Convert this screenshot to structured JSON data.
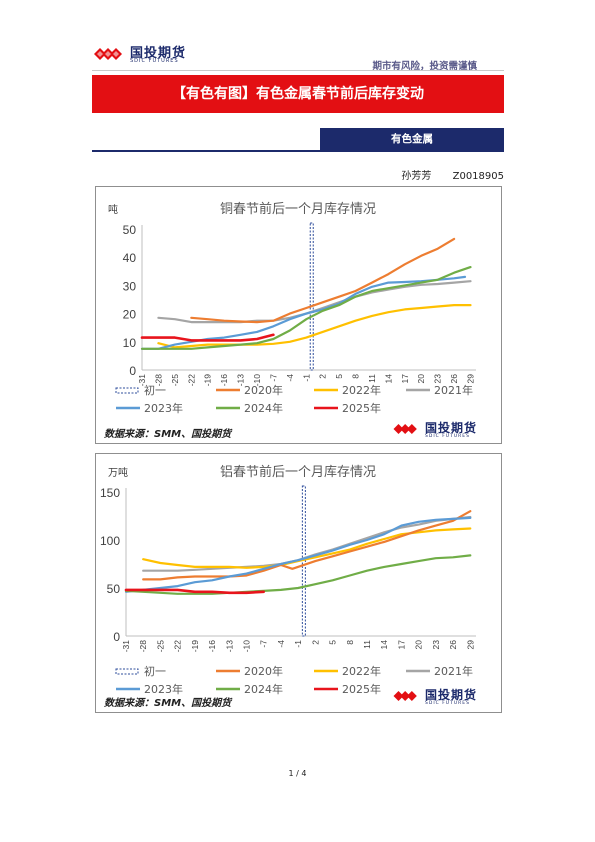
{
  "header": {
    "logo_text": "国投期货",
    "logo_en": "SDIC FUTURES",
    "slogan": "期市有风险，投资需谨慎",
    "title": "【有色有图】有色金属春节前后库存变动",
    "section": "有色金属",
    "author": "孙芳芳",
    "author_id": "Z0018905"
  },
  "footer": {
    "page": "1 / 4"
  },
  "colors": {
    "初一": "#2e4c9b",
    "2020年": "#ed7d31",
    "2022年": "#ffc000",
    "2021年": "#a5a5a5",
    "2023年": "#5b9bd5",
    "2024年": "#70ad47",
    "2025年": "#e8141c",
    "brand": "#e30f13",
    "navy": "#1c2a6b"
  },
  "chart_data": [
    {
      "type": "line",
      "title": "铜春节前后一个月库存情况",
      "ylabel": "吨",
      "ylim": [
        0,
        50
      ],
      "yticks": [
        0,
        10,
        20,
        30,
        40,
        50
      ],
      "xrange": [
        -31,
        30
      ],
      "xticks": [
        "-31",
        "-28",
        "-25",
        "-22",
        "-19",
        "-16",
        "-13",
        "-10",
        "-7",
        "-4",
        "-1",
        "2",
        "5",
        "8",
        "11",
        "14",
        "17",
        "20",
        "23",
        "26",
        "29"
      ],
      "marker_label": "初一",
      "marker_x": 0,
      "source": "数据来源：SMM、国投期货",
      "series": [
        {
          "name": "2020年",
          "points": [
            [
              -22,
              18.5
            ],
            [
              -19,
              18
            ],
            [
              -16,
              17.5
            ],
            [
              -13,
              17.2
            ],
            [
              -10,
              17
            ],
            [
              -7,
              17.5
            ],
            [
              -4,
              20
            ],
            [
              -1,
              22
            ],
            [
              2,
              24
            ],
            [
              5,
              26
            ],
            [
              8,
              28
            ],
            [
              11,
              31
            ],
            [
              14,
              34
            ],
            [
              17,
              37.5
            ],
            [
              20,
              40.5
            ],
            [
              23,
              43
            ],
            [
              26,
              46.5
            ]
          ]
        },
        {
          "name": "2022年",
          "points": [
            [
              -28,
              9.5
            ],
            [
              -25,
              8
            ],
            [
              -22,
              8.5
            ],
            [
              -19,
              9
            ],
            [
              -16,
              9
            ],
            [
              -13,
              9
            ],
            [
              -10,
              9
            ],
            [
              -7,
              9.3
            ],
            [
              -4,
              10
            ],
            [
              -1,
              11.5
            ],
            [
              2,
              13.5
            ],
            [
              5,
              15.5
            ],
            [
              8,
              17.5
            ],
            [
              11,
              19.2
            ],
            [
              14,
              20.5
            ],
            [
              17,
              21.5
            ],
            [
              20,
              22
            ],
            [
              23,
              22.5
            ],
            [
              26,
              23
            ],
            [
              29,
              23
            ]
          ]
        },
        {
          "name": "2021年",
          "points": [
            [
              -28,
              18.5
            ],
            [
              -25,
              18
            ],
            [
              -22,
              17
            ],
            [
              -19,
              17
            ],
            [
              -16,
              17
            ],
            [
              -13,
              17
            ],
            [
              -10,
              17.5
            ],
            [
              -7,
              17.5
            ],
            [
              -4,
              18.5
            ],
            [
              -1,
              20
            ],
            [
              2,
              22
            ],
            [
              5,
              24
            ],
            [
              8,
              26
            ],
            [
              11,
              27.5
            ],
            [
              14,
              28.5
            ],
            [
              17,
              29.5
            ],
            [
              20,
              30.2
            ],
            [
              23,
              30.5
            ],
            [
              26,
              31
            ],
            [
              29,
              31.5
            ]
          ]
        },
        {
          "name": "2023年",
          "points": [
            [
              -31,
              7.5
            ],
            [
              -28,
              7.5
            ],
            [
              -25,
              9
            ],
            [
              -22,
              10
            ],
            [
              -19,
              11
            ],
            [
              -16,
              11.5
            ],
            [
              -13,
              12.5
            ],
            [
              -10,
              13.5
            ],
            [
              -7,
              15.5
            ],
            [
              -4,
              18
            ],
            [
              -1,
              20
            ],
            [
              2,
              21.5
            ],
            [
              5,
              23.5
            ],
            [
              8,
              27
            ],
            [
              11,
              29.5
            ],
            [
              14,
              31
            ],
            [
              17,
              31.2
            ],
            [
              20,
              31.5
            ],
            [
              23,
              32
            ],
            [
              26,
              32.5
            ],
            [
              28,
              33
            ]
          ]
        },
        {
          "name": "2024年",
          "points": [
            [
              -31,
              7.5
            ],
            [
              -28,
              7.5
            ],
            [
              -25,
              7.5
            ],
            [
              -22,
              7.5
            ],
            [
              -19,
              8
            ],
            [
              -16,
              8.5
            ],
            [
              -13,
              9
            ],
            [
              -10,
              9.5
            ],
            [
              -7,
              11
            ],
            [
              -4,
              14
            ],
            [
              -1,
              18
            ],
            [
              2,
              21
            ],
            [
              5,
              23
            ],
            [
              8,
              26
            ],
            [
              11,
              28
            ],
            [
              14,
              29
            ],
            [
              17,
              30
            ],
            [
              20,
              31
            ],
            [
              23,
              32
            ],
            [
              26,
              34.5
            ],
            [
              29,
              36.5
            ]
          ]
        },
        {
          "name": "2025年",
          "points": [
            [
              -31,
              11.5
            ],
            [
              -28,
              11.5
            ],
            [
              -25,
              11.5
            ],
            [
              -22,
              10.5
            ],
            [
              -19,
              10.5
            ],
            [
              -16,
              10.5
            ],
            [
              -13,
              10.5
            ],
            [
              -10,
              11
            ],
            [
              -7,
              12.5
            ]
          ]
        }
      ]
    },
    {
      "type": "line",
      "title": "铝春节前后一个月库存情况",
      "ylabel": "万吨",
      "ylim": [
        0,
        150
      ],
      "yticks": [
        0,
        50,
        100,
        150
      ],
      "xrange": [
        -31,
        30
      ],
      "xticks": [
        "-31",
        "-28",
        "-25",
        "-22",
        "-19",
        "-16",
        "-13",
        "-10",
        "-7",
        "-4",
        "-1",
        "2",
        "5",
        "8",
        "11",
        "14",
        "17",
        "20",
        "23",
        "26",
        "29"
      ],
      "marker_label": "初一",
      "marker_x": 0,
      "source": "数据来源：SMM、国投期货",
      "series": [
        {
          "name": "2020年",
          "points": [
            [
              -28,
              59
            ],
            [
              -25,
              59
            ],
            [
              -22,
              61
            ],
            [
              -19,
              62
            ],
            [
              -16,
              62
            ],
            [
              -13,
              62
            ],
            [
              -10,
              63
            ],
            [
              -7,
              68
            ],
            [
              -4,
              74
            ],
            [
              -2,
              70
            ],
            [
              2,
              78
            ],
            [
              5,
              83
            ],
            [
              8,
              88
            ],
            [
              11,
              93
            ],
            [
              14,
              98
            ],
            [
              17,
              104
            ],
            [
              20,
              110
            ],
            [
              23,
              115
            ],
            [
              26,
              120
            ],
            [
              29,
              130
            ]
          ]
        },
        {
          "name": "2022年",
          "points": [
            [
              -28,
              80
            ],
            [
              -25,
              76
            ],
            [
              -22,
              74
            ],
            [
              -19,
              72
            ],
            [
              -16,
              72
            ],
            [
              -13,
              72
            ],
            [
              -10,
              71
            ],
            [
              -7,
              72
            ],
            [
              -4,
              74
            ],
            [
              -1,
              78
            ],
            [
              2,
              82
            ],
            [
              5,
              86
            ],
            [
              8,
              90
            ],
            [
              11,
              96
            ],
            [
              14,
              101
            ],
            [
              17,
              106
            ],
            [
              20,
              108
            ],
            [
              23,
              110
            ],
            [
              26,
              111
            ],
            [
              29,
              112
            ]
          ]
        },
        {
          "name": "2021年",
          "points": [
            [
              -28,
              68
            ],
            [
              -25,
              68
            ],
            [
              -22,
              68
            ],
            [
              -19,
              69
            ],
            [
              -16,
              70
            ],
            [
              -13,
              71
            ],
            [
              -10,
              72
            ],
            [
              -7,
              73
            ],
            [
              -4,
              75
            ],
            [
              -1,
              79
            ],
            [
              2,
              85
            ],
            [
              5,
              90
            ],
            [
              8,
              96
            ],
            [
              11,
              102
            ],
            [
              14,
              108
            ],
            [
              17,
              113
            ],
            [
              20,
              116
            ],
            [
              23,
              120
            ],
            [
              26,
              122
            ],
            [
              29,
              124
            ]
          ]
        },
        {
          "name": "2023年",
          "points": [
            [
              -31,
              46
            ],
            [
              -28,
              48
            ],
            [
              -25,
              50
            ],
            [
              -22,
              52
            ],
            [
              -19,
              56
            ],
            [
              -16,
              58
            ],
            [
              -13,
              62
            ],
            [
              -10,
              65
            ],
            [
              -7,
              70
            ],
            [
              -4,
              75
            ],
            [
              -1,
              79
            ],
            [
              2,
              84
            ],
            [
              5,
              89
            ],
            [
              8,
              95
            ],
            [
              11,
              100
            ],
            [
              14,
              106
            ],
            [
              17,
              115
            ],
            [
              20,
              119
            ],
            [
              23,
              121
            ],
            [
              26,
              122
            ],
            [
              29,
              123
            ]
          ]
        },
        {
          "name": "2024年",
          "points": [
            [
              -31,
              47
            ],
            [
              -28,
              46
            ],
            [
              -25,
              45
            ],
            [
              -22,
              44
            ],
            [
              -19,
              44
            ],
            [
              -16,
              44
            ],
            [
              -13,
              45
            ],
            [
              -10,
              46
            ],
            [
              -7,
              47
            ],
            [
              -4,
              48
            ],
            [
              -1,
              50
            ],
            [
              2,
              54
            ],
            [
              5,
              58
            ],
            [
              8,
              63
            ],
            [
              11,
              68
            ],
            [
              14,
              72
            ],
            [
              17,
              75
            ],
            [
              20,
              78
            ],
            [
              23,
              81
            ],
            [
              26,
              82
            ],
            [
              29,
              84
            ]
          ]
        },
        {
          "name": "2025年",
          "points": [
            [
              -31,
              48
            ],
            [
              -28,
              48
            ],
            [
              -25,
              48
            ],
            [
              -22,
              48
            ],
            [
              -19,
              46
            ],
            [
              -16,
              46
            ],
            [
              -13,
              45
            ],
            [
              -10,
              45
            ],
            [
              -7,
              46
            ]
          ]
        }
      ]
    }
  ]
}
